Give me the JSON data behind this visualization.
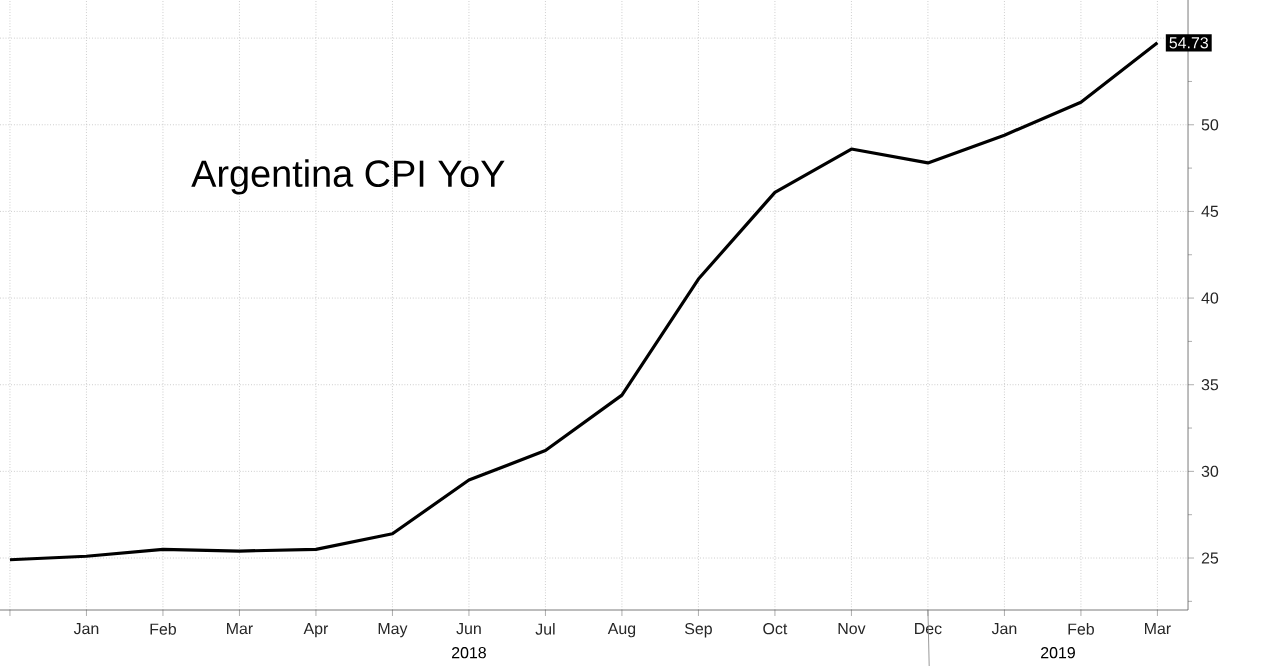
{
  "chart_data": {
    "type": "line",
    "title": "Argentina CPI YoY",
    "categories": [
      null,
      "Jan",
      "Feb",
      "Mar",
      "Apr",
      "May",
      "Jun",
      "Jul",
      "Aug",
      "Sep",
      "Oct",
      "Nov",
      "Dec",
      "Jan",
      "Feb",
      "Mar"
    ],
    "series": [
      {
        "color": "#000000",
        "values": [
          24.9,
          25.1,
          25.5,
          25.4,
          25.5,
          26.4,
          29.5,
          31.2,
          34.4,
          41.1,
          46.1,
          48.6,
          47.8,
          49.4,
          51.3,
          54.73
        ],
        "value_labels": [
          null,
          null,
          null,
          null,
          null,
          null,
          null,
          null,
          null,
          null,
          null,
          null,
          null,
          null,
          null,
          "54.73"
        ]
      }
    ],
    "ylim": [
      22,
      57.2
    ],
    "yticks": [
      25,
      30,
      35,
      40,
      45,
      50,
      {
        "value": 55,
        "label": null
      }
    ],
    "grid": true,
    "marker": "none",
    "line_style": "solid",
    "annotations": [
      "2018",
      "2019"
    ]
  }
}
